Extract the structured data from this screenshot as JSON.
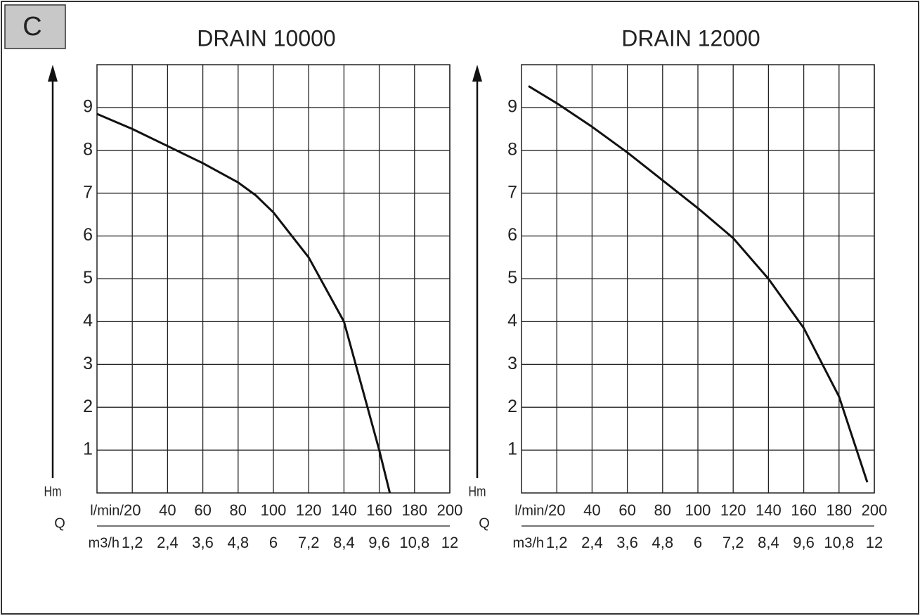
{
  "panel_label": "C",
  "chart_data": [
    {
      "type": "line",
      "title": "DRAIN 10000",
      "ylabel": "Hm",
      "xlabel": "Q",
      "xunit": "l/min/",
      "x": [
        0,
        20,
        40,
        60,
        80,
        90,
        100,
        120,
        140,
        160,
        166
      ],
      "values": [
        8.85,
        8.5,
        8.1,
        7.7,
        7.25,
        6.95,
        6.55,
        5.5,
        4.0,
        1.0,
        0
      ],
      "color": "#111111",
      "xlim": [
        0,
        200
      ],
      "ylim": [
        0,
        10
      ],
      "xticks": [
        20,
        40,
        60,
        80,
        100,
        120,
        140,
        160,
        180,
        200
      ],
      "yticks": [
        1,
        2,
        3,
        4,
        5,
        6,
        7,
        8,
        9
      ],
      "x2unit": "m3/h",
      "x2ticks": [
        {
          "value": 20,
          "label": "1,2"
        },
        {
          "value": 40,
          "label": "2,4"
        },
        {
          "value": 60,
          "label": "3,6"
        },
        {
          "value": 80,
          "label": "4,8"
        },
        {
          "value": 100,
          "label": "6"
        },
        {
          "value": 120,
          "label": "7,2"
        },
        {
          "value": 140,
          "label": "8,4"
        },
        {
          "value": 160,
          "label": "9,6"
        },
        {
          "value": 180,
          "label": "10,8"
        },
        {
          "value": 200,
          "label": "12"
        }
      ],
      "grid": true
    },
    {
      "type": "line",
      "title": "DRAIN 12000",
      "ylabel": "Hm",
      "xlabel": "Q",
      "xunit": "l/min/",
      "x": [
        4,
        20,
        40,
        60,
        80,
        100,
        120,
        140,
        160,
        180,
        196
      ],
      "values": [
        9.5,
        9.1,
        8.55,
        7.95,
        7.3,
        6.65,
        5.95,
        5.0,
        3.85,
        2.25,
        0.25
      ],
      "color": "#111111",
      "xlim": [
        0,
        200
      ],
      "ylim": [
        0,
        10
      ],
      "xticks": [
        20,
        40,
        60,
        80,
        100,
        120,
        140,
        160,
        180,
        200
      ],
      "yticks": [
        1,
        2,
        3,
        4,
        5,
        6,
        7,
        8,
        9
      ],
      "x2unit": "m3/h",
      "x2ticks": [
        {
          "value": 20,
          "label": "1,2"
        },
        {
          "value": 40,
          "label": "2,4"
        },
        {
          "value": 60,
          "label": "3,6"
        },
        {
          "value": 80,
          "label": "4,8"
        },
        {
          "value": 100,
          "label": "6"
        },
        {
          "value": 120,
          "label": "7,2"
        },
        {
          "value": 140,
          "label": "8,4"
        },
        {
          "value": 160,
          "label": "9,6"
        },
        {
          "value": 180,
          "label": "10,8"
        },
        {
          "value": 200,
          "label": "12"
        }
      ],
      "grid": true
    }
  ]
}
